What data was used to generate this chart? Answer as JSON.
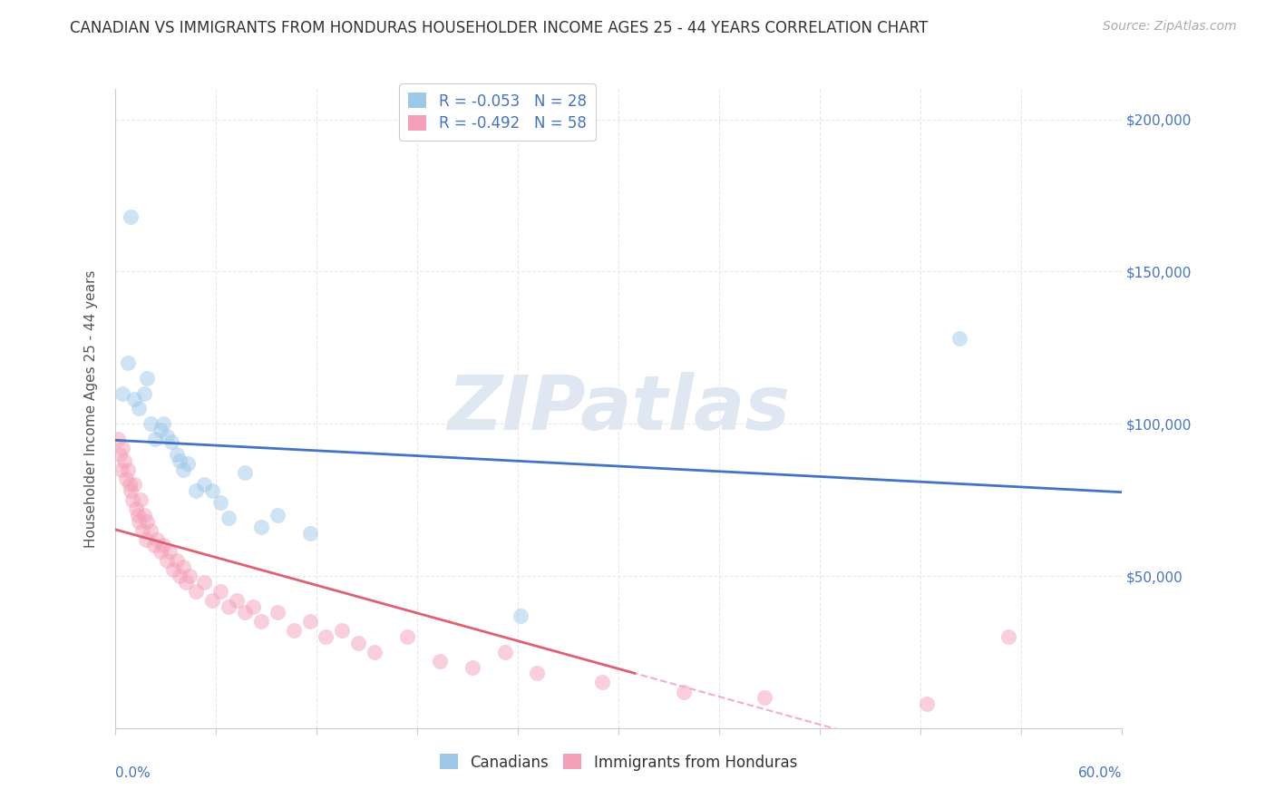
{
  "title": "CANADIAN VS IMMIGRANTS FROM HONDURAS HOUSEHOLDER INCOME AGES 25 - 44 YEARS CORRELATION CHART",
  "source": "Source: ZipAtlas.com",
  "ylabel": "Householder Income Ages 25 - 44 years",
  "watermark": "ZIPatlas",
  "legend_line1": "R = -0.053   N = 28",
  "legend_line2": "R = -0.492   N = 58",
  "legend_bottom1": "Canadians",
  "legend_bottom2": "Immigrants from Honduras",
  "canadian_x": [
    0.005,
    0.008,
    0.01,
    0.012,
    0.015,
    0.018,
    0.02,
    0.022,
    0.025,
    0.028,
    0.03,
    0.032,
    0.035,
    0.038,
    0.04,
    0.042,
    0.045,
    0.05,
    0.055,
    0.06,
    0.065,
    0.07,
    0.08,
    0.09,
    0.1,
    0.12,
    0.25,
    0.52
  ],
  "canadian_y": [
    110000,
    120000,
    168000,
    108000,
    105000,
    110000,
    115000,
    100000,
    95000,
    98000,
    100000,
    96000,
    94000,
    90000,
    88000,
    85000,
    87000,
    78000,
    80000,
    78000,
    74000,
    69000,
    84000,
    66000,
    70000,
    64000,
    37000,
    128000
  ],
  "honduras_x": [
    0.002,
    0.003,
    0.004,
    0.005,
    0.006,
    0.007,
    0.008,
    0.009,
    0.01,
    0.011,
    0.012,
    0.013,
    0.014,
    0.015,
    0.016,
    0.017,
    0.018,
    0.019,
    0.02,
    0.022,
    0.024,
    0.026,
    0.028,
    0.03,
    0.032,
    0.034,
    0.036,
    0.038,
    0.04,
    0.042,
    0.044,
    0.046,
    0.05,
    0.055,
    0.06,
    0.065,
    0.07,
    0.075,
    0.08,
    0.085,
    0.09,
    0.1,
    0.11,
    0.12,
    0.13,
    0.14,
    0.15,
    0.16,
    0.18,
    0.2,
    0.22,
    0.24,
    0.26,
    0.3,
    0.35,
    0.4,
    0.5,
    0.55
  ],
  "honduras_y": [
    95000,
    90000,
    85000,
    92000,
    88000,
    82000,
    85000,
    80000,
    78000,
    75000,
    80000,
    72000,
    70000,
    68000,
    75000,
    65000,
    70000,
    62000,
    68000,
    65000,
    60000,
    62000,
    58000,
    60000,
    55000,
    58000,
    52000,
    55000,
    50000,
    53000,
    48000,
    50000,
    45000,
    48000,
    42000,
    45000,
    40000,
    42000,
    38000,
    40000,
    35000,
    38000,
    32000,
    35000,
    30000,
    32000,
    28000,
    25000,
    30000,
    22000,
    20000,
    25000,
    18000,
    15000,
    12000,
    10000,
    8000,
    30000
  ],
  "canadian_scatter_color": "#9ec8e8",
  "honduras_scatter_color": "#f4a0b8",
  "canadian_line_color": "#4472c4",
  "honduras_line_color": "#e06070",
  "honduras_dash_color": "#f4b0c0",
  "ylim": [
    0,
    210000
  ],
  "xlim": [
    0.0,
    0.62
  ],
  "yticks": [
    0,
    50000,
    100000,
    150000,
    200000
  ],
  "ytick_labels": [
    "",
    "$50,000",
    "$100,000",
    "$150,000",
    "$200,000"
  ],
  "background_color": "#ffffff",
  "grid_color": "#e8e8e8",
  "title_fontsize": 12,
  "ylabel_fontsize": 11,
  "tick_label_fontsize": 11,
  "source_fontsize": 10,
  "legend_fontsize": 12,
  "marker_size": 150,
  "marker_alpha": 0.5,
  "line_width": 2.0,
  "axis_color": "#cccccc",
  "text_color": "#4472c4",
  "label_color": "#555555",
  "watermark_color": "#c8d8ea",
  "watermark_fontsize": 60
}
